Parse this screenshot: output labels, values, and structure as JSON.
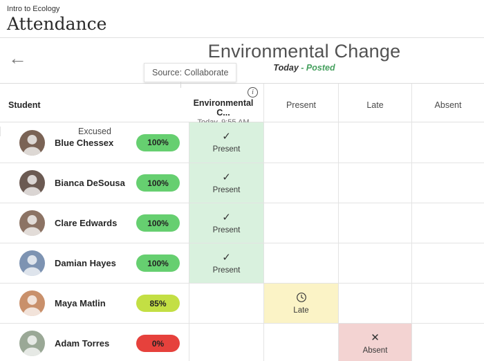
{
  "page": {
    "course_label": "Intro to Ecology",
    "page_title": "Attendance"
  },
  "meeting_header": {
    "back_icon": "←",
    "title": "Environmental Change",
    "date_label": "Today",
    "posted_label": "- Posted",
    "posted_color": "#45a05e",
    "tooltip_text": "Source: Collaborate"
  },
  "table": {
    "columns": {
      "student": "Student",
      "meeting": {
        "title": "Environmental C...",
        "subtitle": "Today, 9:55 AM",
        "info_icon": "i"
      },
      "statuses": [
        "Present",
        "Late",
        "Absent",
        "Excused"
      ]
    },
    "status_styles": {
      "Present": {
        "bg": "#d9f1de",
        "icon": "check"
      },
      "Late": {
        "bg": "#fbf3c6",
        "icon": "clock"
      },
      "Absent": {
        "bg": "#f3d3d2",
        "icon": "cross"
      }
    },
    "rows": [
      {
        "name": "Blue Chessex",
        "score": "100%",
        "score_color": "#66cf70",
        "status": "Present",
        "avatar_color": "#7a6355"
      },
      {
        "name": "Bianca DeSousa",
        "score": "100%",
        "score_color": "#66cf70",
        "status": "Present",
        "avatar_color": "#6b5a52"
      },
      {
        "name": "Clare Edwards",
        "score": "100%",
        "score_color": "#66cf70",
        "status": "Present",
        "avatar_color": "#8c7364"
      },
      {
        "name": "Damian Hayes",
        "score": "100%",
        "score_color": "#66cf70",
        "status": "Present",
        "avatar_color": "#7d93b2"
      },
      {
        "name": "Maya Matlin",
        "score": "85%",
        "score_color": "#c3df44",
        "status": "Late",
        "avatar_color": "#c9906b"
      },
      {
        "name": "Adam Torres",
        "score": "0%",
        "score_color": "#e6413c",
        "status": "Absent",
        "avatar_color": "#9aa896"
      }
    ]
  }
}
